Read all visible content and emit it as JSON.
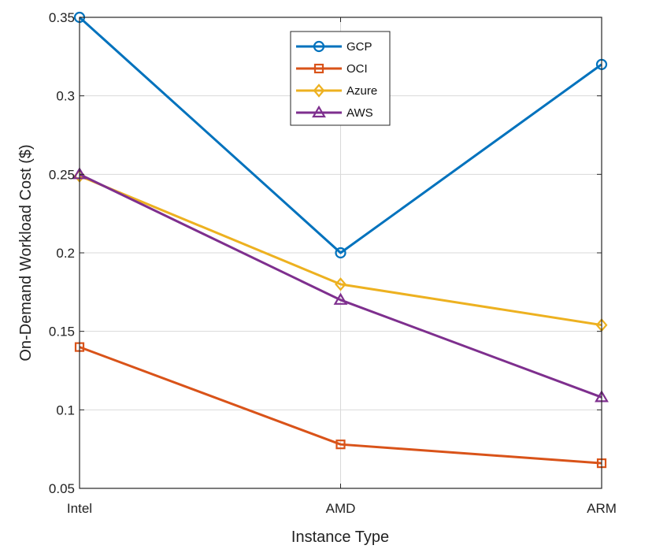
{
  "chart_data": {
    "type": "line",
    "title": "",
    "xlabel": "Instance Type",
    "ylabel": "On-Demand Workload Cost ($)",
    "categories": [
      "Intel",
      "AMD",
      "ARM"
    ],
    "ylim": [
      0.05,
      0.35
    ],
    "yticks": [
      "0.05",
      "0.1",
      "0.15",
      "0.2",
      "0.25",
      "0.3",
      "0.35"
    ],
    "yticks_values": [
      0.05,
      0.1,
      0.15,
      0.2,
      0.25,
      0.3,
      0.35
    ],
    "grid": true,
    "legend_position": "top-center",
    "series": [
      {
        "name": "GCP",
        "marker": "circle",
        "color": "#0072BD",
        "values": [
          0.35,
          0.2,
          0.32
        ]
      },
      {
        "name": "OCI",
        "marker": "square",
        "color": "#D95319",
        "values": [
          0.14,
          0.078,
          0.066
        ]
      },
      {
        "name": "Azure",
        "marker": "diamond",
        "color": "#EDB120",
        "values": [
          0.249,
          0.18,
          0.154
        ]
      },
      {
        "name": "AWS",
        "marker": "triangle",
        "color": "#7E2F8E",
        "values": [
          0.25,
          0.17,
          0.108
        ]
      }
    ]
  }
}
